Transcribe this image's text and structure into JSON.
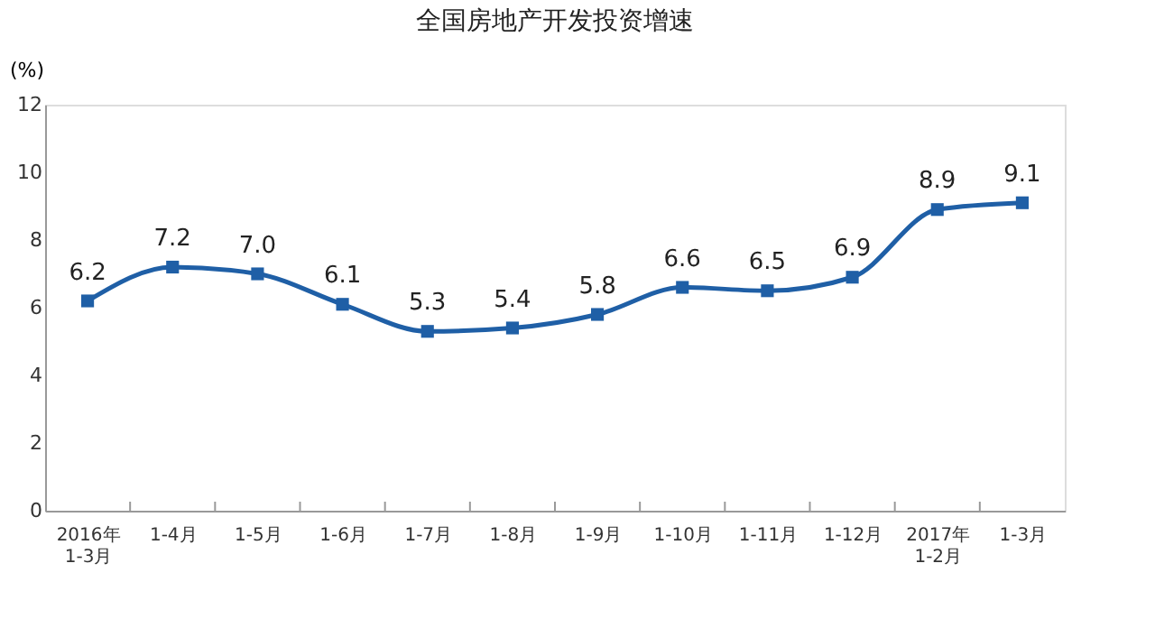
{
  "chart_data": {
    "type": "line",
    "title": "全国房地产开发投资增速",
    "ylabel": "(%)",
    "categories": [
      "2016年\n1-3月",
      "1-4月",
      "1-5月",
      "1-6月",
      "1-7月",
      "1-8月",
      "1-9月",
      "1-10月",
      "1-11月",
      "1-12月",
      "2017年\n1-2月",
      "1-3月"
    ],
    "series": [
      {
        "color": "#1f5fa6",
        "values": [
          6.2,
          7.2,
          7.0,
          6.1,
          5.3,
          5.4,
          5.8,
          6.6,
          6.5,
          6.9,
          8.9,
          9.1
        ],
        "value_labels": [
          "6.2",
          "7.2",
          "7.0",
          "6.1",
          "5.3",
          "5.4",
          "5.8",
          "6.6",
          "6.5",
          "6.9",
          "8.9",
          "9.1"
        ]
      }
    ],
    "ylim": [
      0,
      12
    ],
    "yticks": [
      0,
      2,
      4,
      6,
      8,
      10,
      12
    ],
    "grid": false,
    "marker": "square",
    "line_style": "solid"
  }
}
